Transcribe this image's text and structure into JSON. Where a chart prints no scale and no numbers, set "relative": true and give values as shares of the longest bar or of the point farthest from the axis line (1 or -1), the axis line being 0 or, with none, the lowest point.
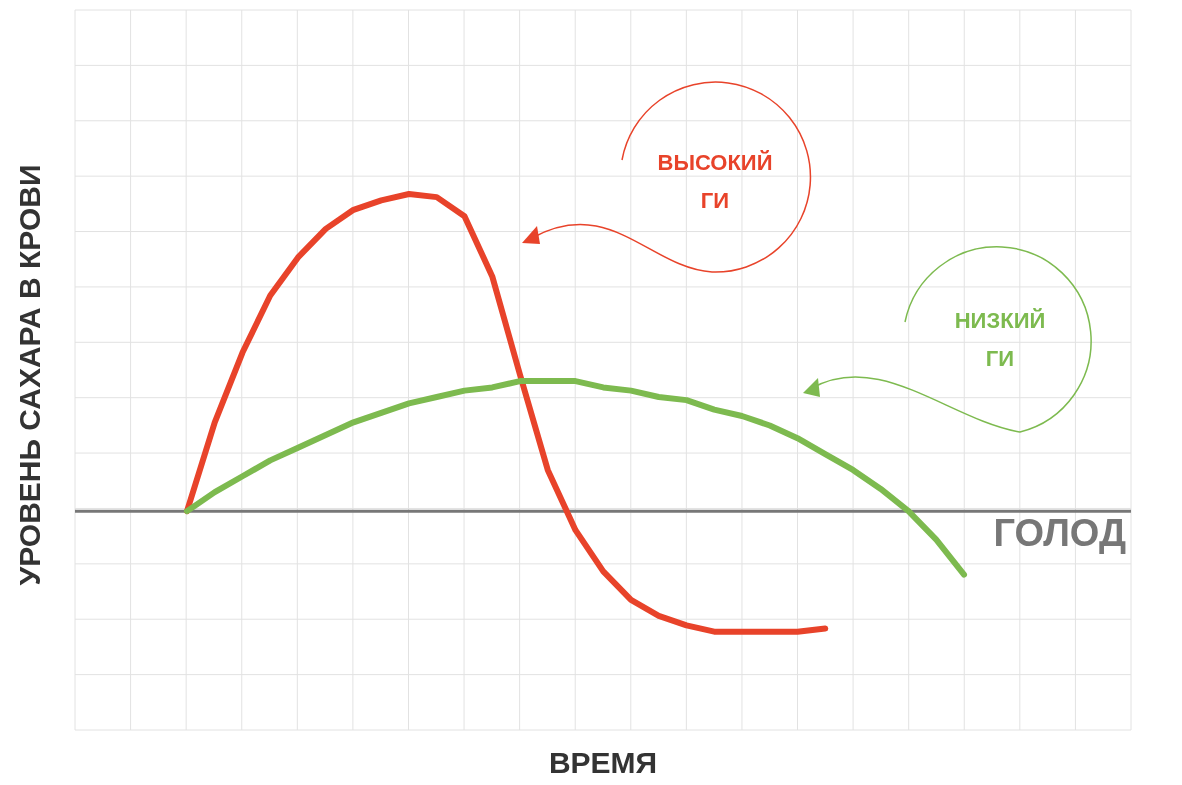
{
  "chart_data": {
    "type": "line",
    "relative": true,
    "xlabel": "ВРЕМЯ",
    "ylabel": "УРОВЕНЬ САХАРА В КРОВИ",
    "grid": true,
    "categories": [
      null,
      null,
      null,
      null,
      null,
      null,
      null,
      null,
      null,
      null,
      null,
      null,
      null,
      null,
      null,
      null,
      null,
      null,
      null,
      null,
      null,
      null,
      null,
      null,
      null,
      null,
      null,
      null,
      null
    ],
    "series": [
      {
        "name": "ВЫСОКИЙ ГИ",
        "color": "#e8432a",
        "values": [
          0,
          0.28,
          0.5,
          0.68,
          0.8,
          0.89,
          0.95,
          0.98,
          1,
          0.99,
          0.93,
          0.74,
          0.43,
          0.13,
          -0.06,
          -0.19,
          -0.28,
          -0.33,
          -0.36,
          -0.38,
          -0.38,
          -0.38,
          -0.38,
          -0.37,
          null,
          null,
          null,
          null,
          null
        ]
      },
      {
        "name": "НИЗКИЙ ГИ",
        "color": "#7dba4f",
        "values": [
          0,
          0.06,
          0.11,
          0.16,
          0.2,
          0.24,
          0.28,
          0.31,
          0.34,
          0.36,
          0.38,
          0.39,
          0.41,
          0.41,
          0.41,
          0.39,
          0.38,
          0.36,
          0.35,
          0.32,
          0.3,
          0.27,
          0.23,
          0.18,
          0.13,
          0.07,
          0,
          -0.09,
          -0.2
        ]
      }
    ],
    "ref_lines": [
      {
        "axis": "y",
        "value": 0,
        "label": "ГОЛОД",
        "color": "#777777"
      }
    ]
  }
}
